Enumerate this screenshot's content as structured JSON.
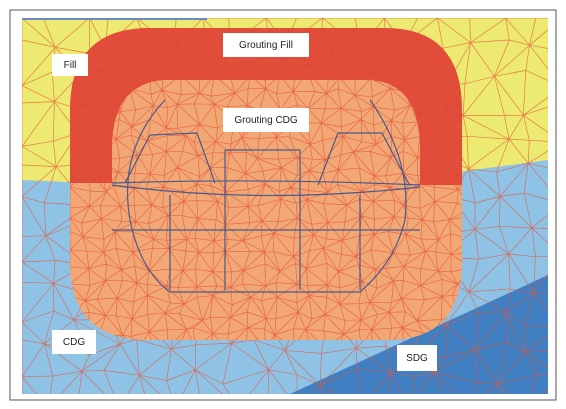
{
  "labels": {
    "grouting_fill": "Grouting Fill",
    "grouting_cdg": "Grouting CDG",
    "fill": "Fill",
    "cdg": "CDG",
    "sdg": "SDG"
  },
  "colors": {
    "fill_layer": "#ecea70",
    "cdg_layer": "#8ec3e6",
    "sdg_layer": "#3f7fc2",
    "grouting_fill": "#e04b3a",
    "grouting_cdg": "#f2a875",
    "mesh_line": "#e6553c",
    "structure_line": "#4a5a8a"
  }
}
